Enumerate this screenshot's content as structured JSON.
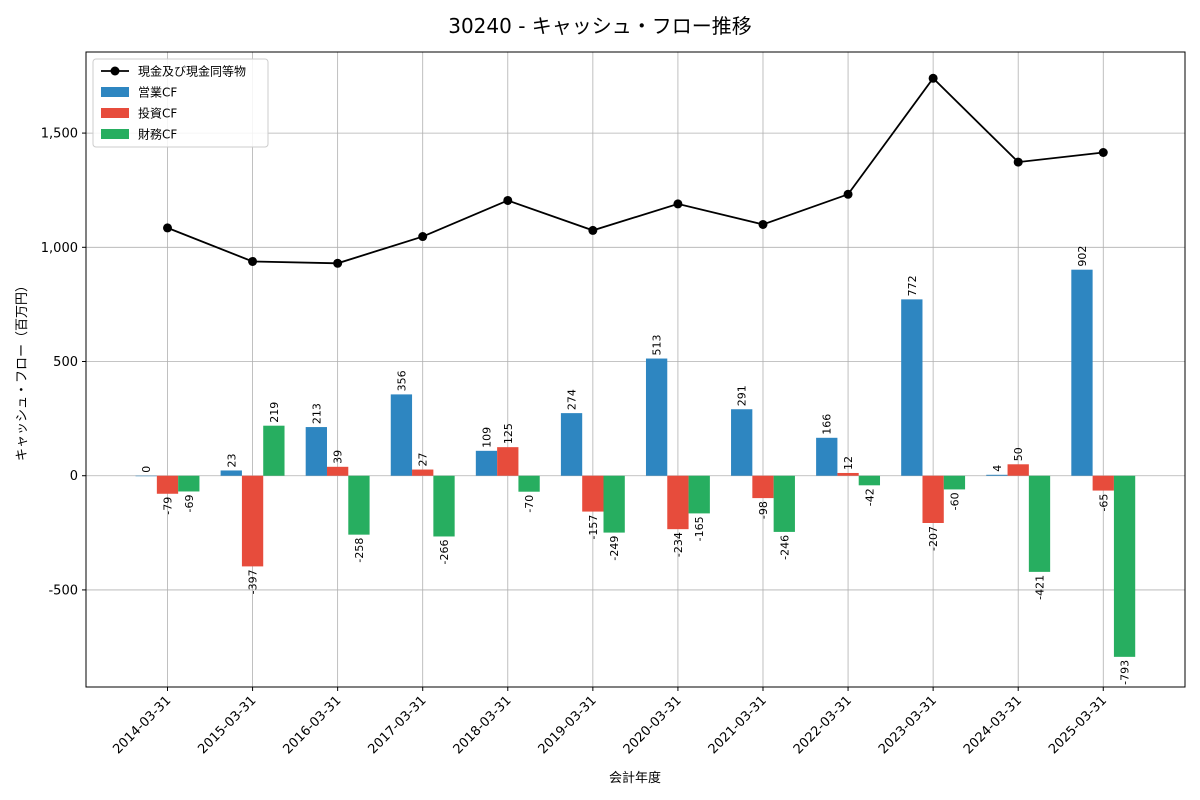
{
  "chart_data": {
    "type": "bar",
    "title": "30240 - キャッシュ・フロー推移",
    "xlabel": "会計年度",
    "ylabel": "キャッシュ・フロー（百万円）",
    "categories": [
      "2014-03-31",
      "2015-03-31",
      "2016-03-31",
      "2017-03-31",
      "2018-03-31",
      "2019-03-31",
      "2020-03-31",
      "2021-03-31",
      "2022-03-31",
      "2023-03-31",
      "2024-03-31",
      "2025-03-31"
    ],
    "series": [
      {
        "name": "営業CF",
        "kind": "bar",
        "color": "#2e86c1",
        "values": [
          0,
          23,
          213,
          356,
          109,
          274,
          513,
          291,
          166,
          772,
          4,
          902
        ]
      },
      {
        "name": "投資CF",
        "kind": "bar",
        "color": "#e74c3c",
        "values": [
          -79,
          -397,
          39,
          27,
          125,
          -157,
          -234,
          -98,
          12,
          -207,
          50,
          -65
        ]
      },
      {
        "name": "財務CF",
        "kind": "bar",
        "color": "#27ae60",
        "values": [
          -69,
          219,
          -258,
          -266,
          -70,
          -249,
          -165,
          -246,
          -42,
          -60,
          -421,
          -793
        ]
      },
      {
        "name": "現金及び現金同等物",
        "kind": "line",
        "color": "#000000",
        "values": [
          1085,
          938,
          930,
          1047,
          1205,
          1074,
          1190,
          1100,
          1232,
          1740,
          1373,
          1415
        ]
      }
    ],
    "ylim": [
      -925,
      1855
    ],
    "yticks": [
      -500,
      0,
      500,
      1000,
      1500
    ],
    "ytick_labels": [
      "-500",
      "0",
      "500",
      "1,000",
      "1,500"
    ],
    "grid": true,
    "legend_position": "top-left"
  }
}
